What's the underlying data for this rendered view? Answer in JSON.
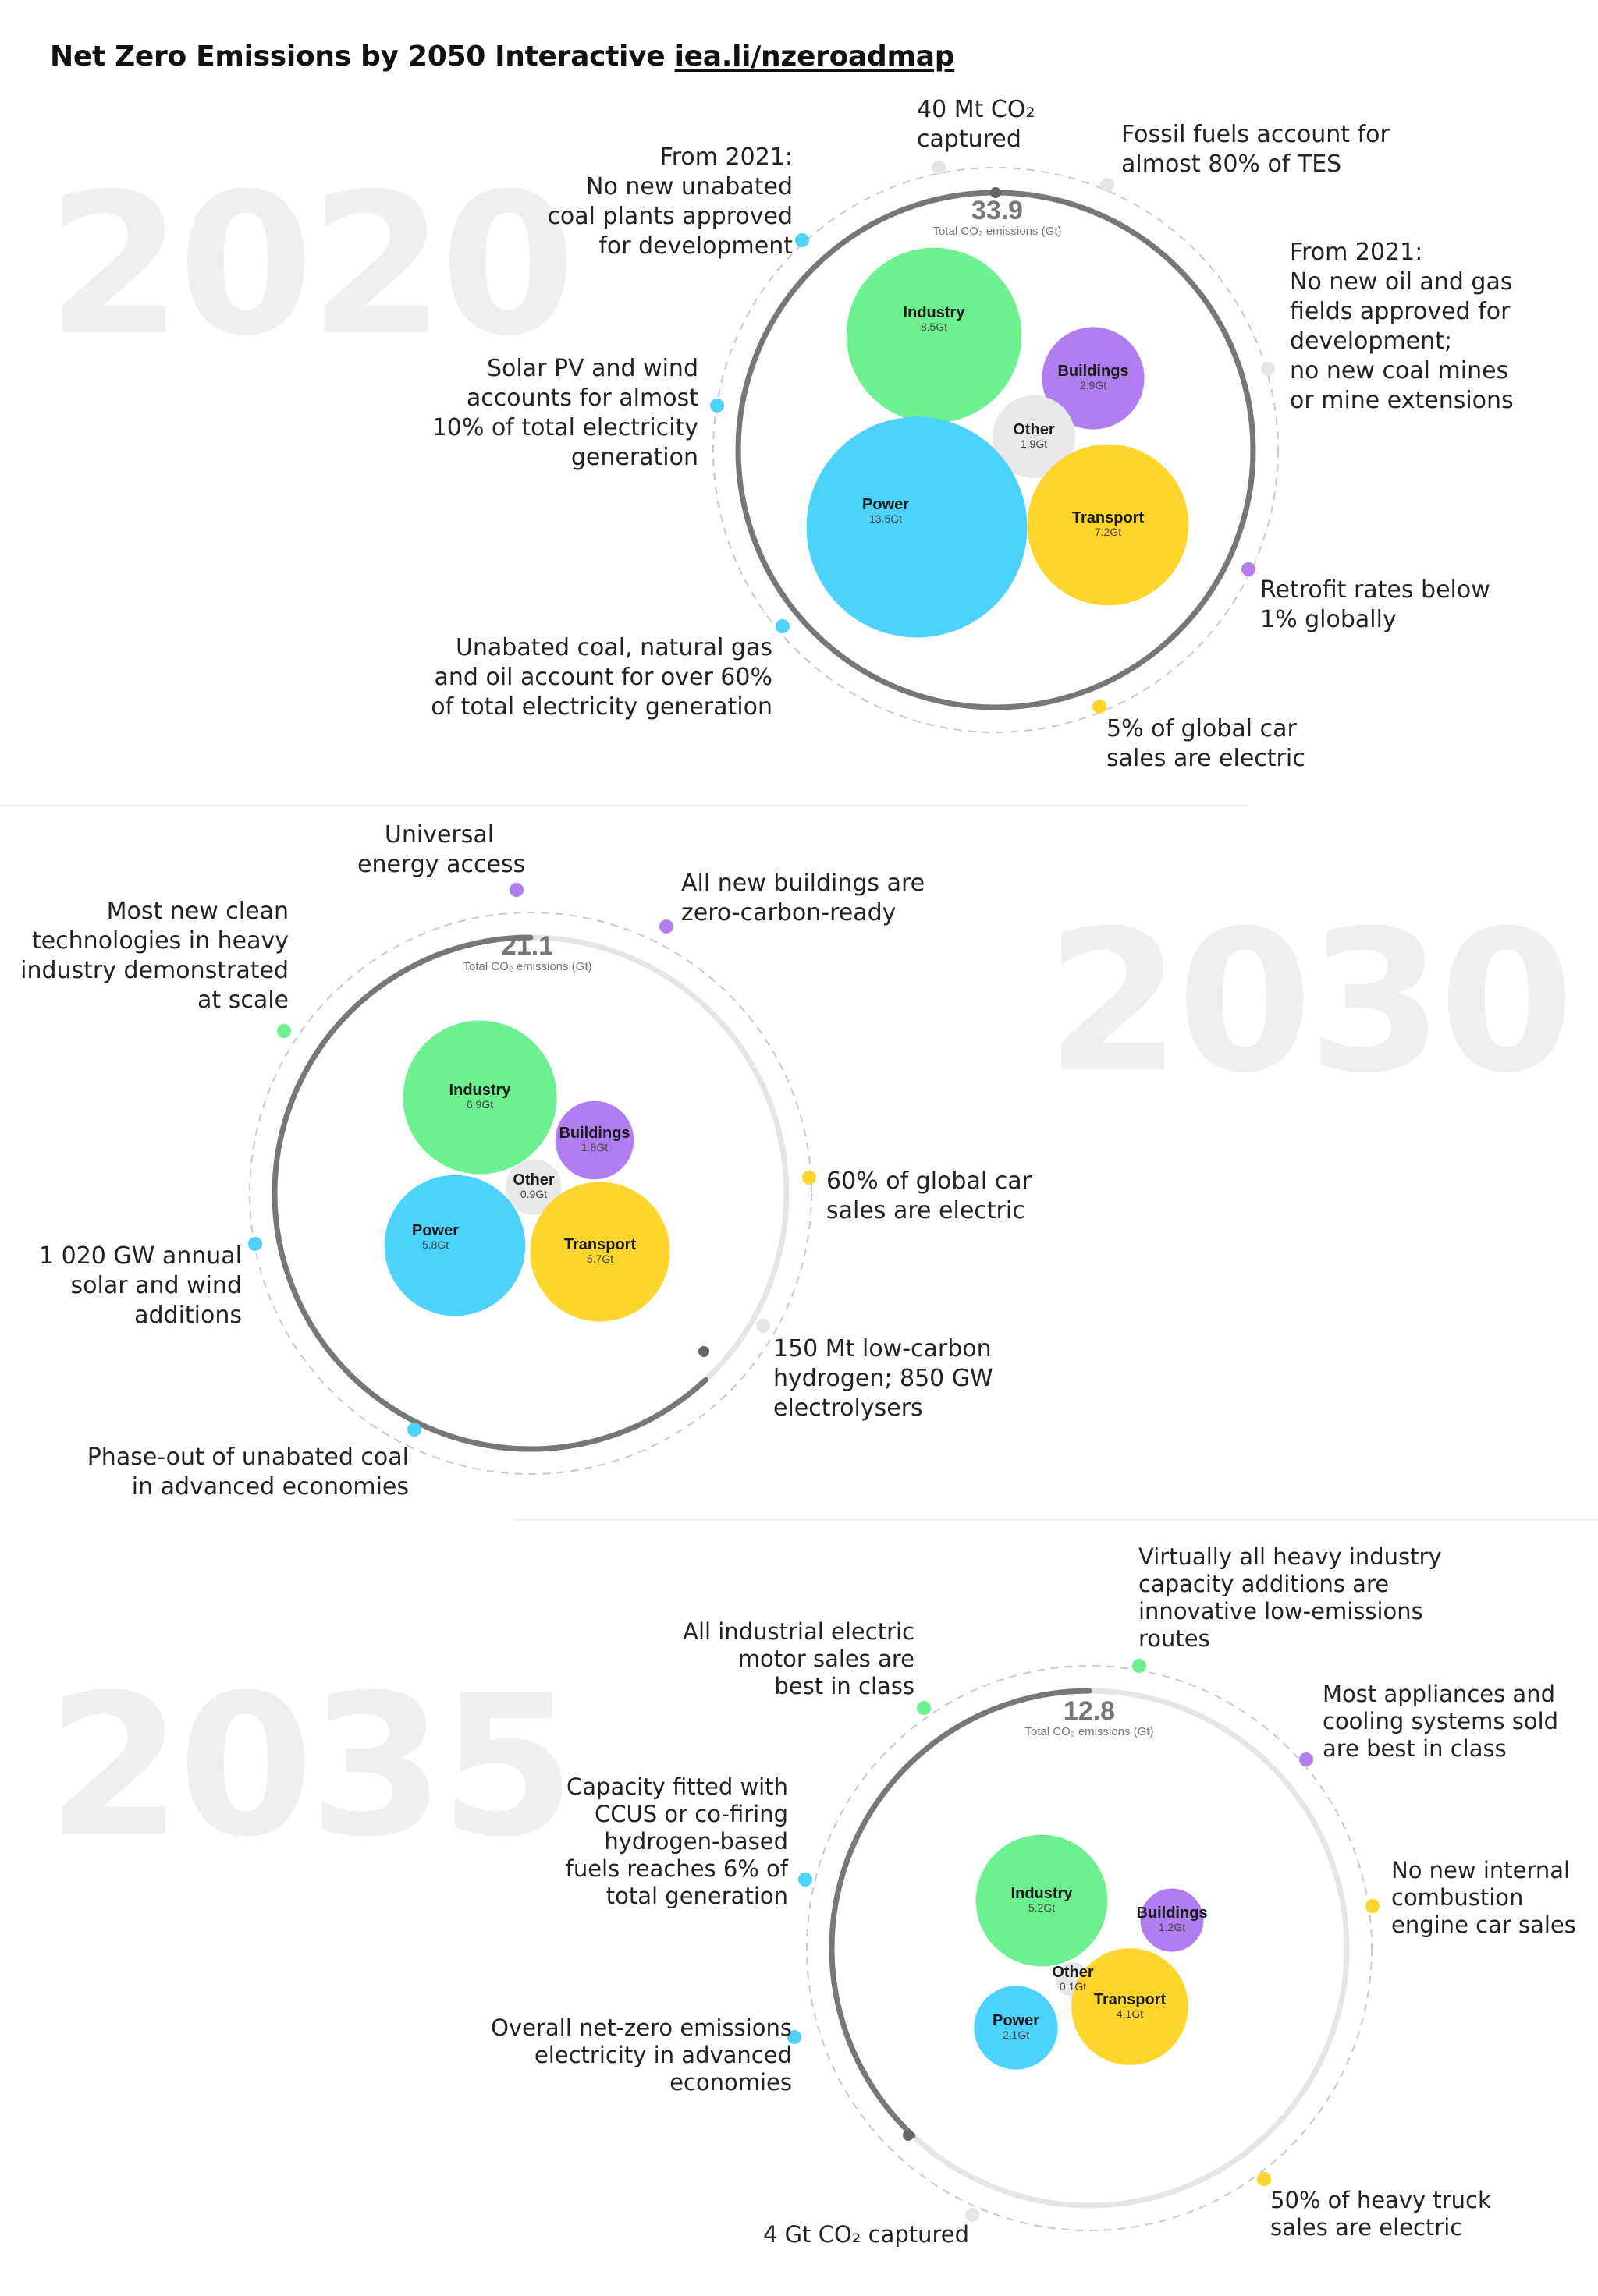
{
  "header": {
    "title": "Net Zero Emissions by 2050 Interactive",
    "link_text": "iea.li/nzeroadmap"
  },
  "colors": {
    "power": "#4dd3fb",
    "industry": "#6cf090",
    "buildings": "#b07ef0",
    "transport": "#fdd52c",
    "other": "#e8e8e8",
    "track": "#777777",
    "track_light": "#e5e5e5"
  },
  "chart_data": [
    {
      "type": "bubble",
      "year": "2020",
      "total_value": "33.9",
      "total_label": "Total CO₂ emissions (Gt)",
      "total_fraction": 1.0,
      "sectors": [
        {
          "name": "Industry",
          "value": "8.5Gt",
          "gt": 8.5,
          "color": "#6cf090"
        },
        {
          "name": "Buildings",
          "value": "2.9Gt",
          "gt": 2.9,
          "color": "#b07ef0"
        },
        {
          "name": "Other",
          "value": "1.9Gt",
          "gt": 1.9,
          "color": "#e8e8e8"
        },
        {
          "name": "Power",
          "value": "13.5Gt",
          "gt": 13.5,
          "color": "#4dd3fb"
        },
        {
          "name": "Transport",
          "value": "7.2Gt",
          "gt": 7.2,
          "color": "#fdd52c"
        }
      ],
      "milestones": [
        {
          "text": [
            "40 Mt CO₂",
            "captured"
          ],
          "color": "#e5e5e5"
        },
        {
          "text": [
            "Fossil fuels account for",
            "almost 80% of TES"
          ],
          "color": "#e5e5e5"
        },
        {
          "text": [
            "From 2021:",
            "No new oil and gas",
            "fields approved for",
            "development;",
            "no new coal mines",
            "or mine extensions"
          ],
          "color": "#e5e5e5"
        },
        {
          "text": [
            "Retrofit rates below",
            " 1% globally"
          ],
          "color": "#b07ef0"
        },
        {
          "text": [
            "5% of global car",
            "sales are electric"
          ],
          "color": "#fdd52c"
        },
        {
          "text": [
            "Unabated coal, natural gas",
            "and oil account for over 60%",
            "of total electricity generation"
          ],
          "color": "#4dd3fb"
        },
        {
          "text": [
            "Solar PV and wind",
            "accounts for almost",
            "10% of total electricity",
            "generation"
          ],
          "color": "#4dd3fb"
        },
        {
          "text": [
            "From 2021:",
            "No new unabated",
            "coal plants approved",
            "for development"
          ],
          "color": "#4dd3fb"
        }
      ]
    },
    {
      "type": "bubble",
      "year": "2030",
      "total_value": "21.1",
      "total_label": "Total CO₂ emissions (Gt)",
      "total_fraction": 0.62,
      "sectors": [
        {
          "name": "Industry",
          "value": "6.9Gt",
          "gt": 6.9,
          "color": "#6cf090"
        },
        {
          "name": "Buildings",
          "value": "1.8Gt",
          "gt": 1.8,
          "color": "#b07ef0"
        },
        {
          "name": "Other",
          "value": "0.9Gt",
          "gt": 0.9,
          "color": "#e8e8e8"
        },
        {
          "name": "Power",
          "value": "5.8Gt",
          "gt": 5.8,
          "color": "#4dd3fb"
        },
        {
          "name": "Transport",
          "value": "5.7Gt",
          "gt": 5.7,
          "color": "#fdd52c"
        }
      ],
      "milestones": [
        {
          "text": [
            "Universal",
            "energy access"
          ],
          "color": "#b07ef0"
        },
        {
          "text": [
            "All new buildings are",
            "zero-carbon-ready"
          ],
          "color": "#b07ef0"
        },
        {
          "text": [
            "60% of global car",
            "sales are electric"
          ],
          "color": "#fdd52c"
        },
        {
          "text": [
            "150 Mt low-carbon",
            "hydrogen; 850 GW",
            "electrolysers"
          ],
          "color": "#e5e5e5"
        },
        {
          "text": [
            "Phase-out of unabated coal",
            "in advanced economies"
          ],
          "color": "#4dd3fb"
        },
        {
          "text": [
            "1 020 GW annual",
            "solar and wind",
            "additions"
          ],
          "color": "#4dd3fb"
        },
        {
          "text": [
            "Most new clean",
            "technologies in heavy",
            "industry demonstrated",
            "at scale"
          ],
          "color": "#6cf090"
        }
      ]
    },
    {
      "type": "bubble",
      "year": "2035",
      "total_value": "12.8",
      "total_label": "Total CO₂ emissions (Gt)",
      "total_fraction": 0.38,
      "sectors": [
        {
          "name": "Industry",
          "value": "5.2Gt",
          "gt": 5.2,
          "color": "#6cf090"
        },
        {
          "name": "Buildings",
          "value": "1.2Gt",
          "gt": 1.2,
          "color": "#b07ef0"
        },
        {
          "name": "Other",
          "value": "0.1Gt",
          "gt": 0.1,
          "color": "#e8e8e8"
        },
        {
          "name": "Power",
          "value": "2.1Gt",
          "gt": 2.1,
          "color": "#4dd3fb"
        },
        {
          "name": "Transport",
          "value": "4.1Gt",
          "gt": 4.1,
          "color": "#fdd52c"
        }
      ],
      "milestones": [
        {
          "text": [
            "Virtually all heavy industry",
            "capacity additions are",
            "innovative low-emissions",
            "routes"
          ],
          "color": "#6cf090"
        },
        {
          "text": [
            "Most appliances and",
            "cooling systems sold",
            "are best in class"
          ],
          "color": "#b07ef0"
        },
        {
          "text": [
            "No new internal",
            "combustion",
            "engine car sales"
          ],
          "color": "#fdd52c"
        },
        {
          "text": [
            "50% of heavy truck",
            "sales are electric"
          ],
          "color": "#fdd52c"
        },
        {
          "text": [
            "4 Gt CO₂ captured"
          ],
          "color": "#e5e5e5"
        },
        {
          "text": [
            "Overall net-zero emissions",
            "electricity in advanced",
            "economies"
          ],
          "color": "#4dd3fb"
        },
        {
          "text": [
            "Capacity fitted with",
            "CCUS or co-firing",
            "hydrogen-based",
            "fuels reaches 6% of",
            "total generation"
          ],
          "color": "#4dd3fb"
        },
        {
          "text": [
            "All industrial electric",
            "motor sales are",
            "best in class"
          ],
          "color": "#6cf090"
        }
      ]
    }
  ]
}
